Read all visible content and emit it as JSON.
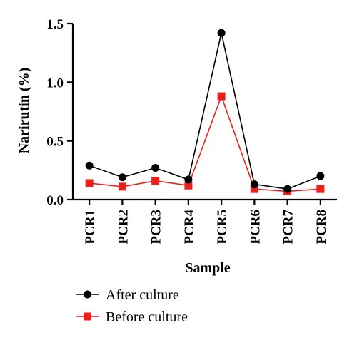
{
  "chart_data": {
    "type": "line",
    "categories": [
      "PCR1",
      "PCR2",
      "PCR3",
      "PCR4",
      "PCR5",
      "PCR6",
      "PCR7",
      "PCR8"
    ],
    "series": [
      {
        "name": "After culture",
        "values": [
          0.29,
          0.19,
          0.27,
          0.17,
          1.42,
          0.13,
          0.09,
          0.2
        ],
        "color": "#000000",
        "marker": "circle"
      },
      {
        "name": "Before culture",
        "values": [
          0.14,
          0.11,
          0.16,
          0.12,
          0.88,
          0.09,
          0.07,
          0.09
        ],
        "color": "#e8211d",
        "marker": "square"
      }
    ],
    "xlabel": "Sample",
    "ylabel": "Narirutin (%)",
    "ylim": [
      0.0,
      1.5
    ],
    "yticks": [
      "0.0",
      "0.5",
      "1.0",
      "1.5"
    ],
    "grid": false,
    "legend_position": "bottom"
  }
}
